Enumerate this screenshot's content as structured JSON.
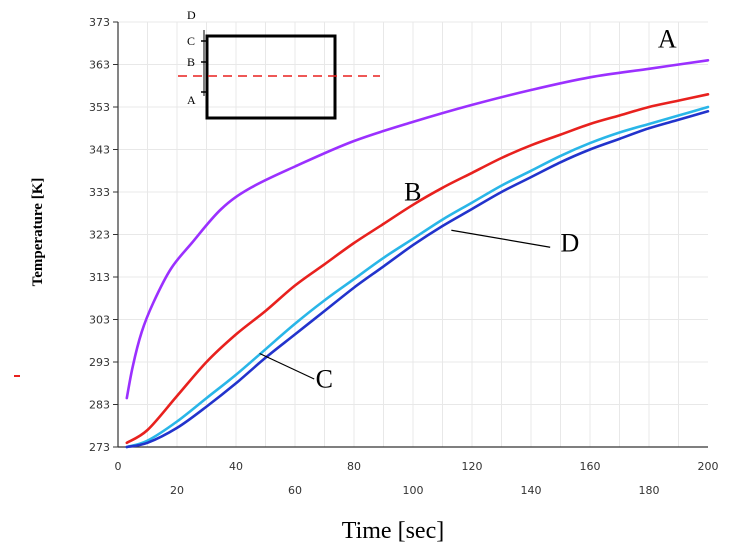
{
  "chart_data": {
    "type": "line",
    "xlabel": "Time [sec]",
    "ylabel": "Temperature [K]",
    "xlim": [
      0,
      200
    ],
    "ylim": [
      273,
      373
    ],
    "x_ticks_lower": [
      0,
      40,
      80,
      120,
      160,
      200
    ],
    "x_ticks_upper": [
      20,
      60,
      100,
      140,
      180
    ],
    "y_ticks": [
      273,
      283,
      293,
      303,
      313,
      323,
      333,
      343,
      353,
      363,
      373
    ],
    "grid": true,
    "series": [
      {
        "name": "A",
        "color": "#9b30ff",
        "x": [
          3,
          5,
          8,
          12,
          18,
          25,
          35,
          45,
          60,
          80,
          100,
          120,
          140,
          160,
          180,
          200
        ],
        "y": [
          284.5,
          292,
          300,
          307,
          315,
          321,
          329,
          334,
          339,
          345,
          349.5,
          353.5,
          357,
          360,
          362,
          364
        ]
      },
      {
        "name": "B",
        "color": "#e8211e",
        "x": [
          3,
          10,
          20,
          30,
          40,
          50,
          60,
          70,
          80,
          90,
          100,
          110,
          120,
          130,
          140,
          150,
          160,
          170,
          180,
          190,
          200
        ],
        "y": [
          274,
          277,
          285,
          293,
          299.5,
          305,
          311,
          316,
          321,
          325.5,
          330,
          334,
          337.5,
          341,
          344,
          346.5,
          349,
          351,
          353,
          354.5,
          356
        ]
      },
      {
        "name": "C",
        "color": "#29b6e8",
        "x": [
          3,
          10,
          20,
          30,
          40,
          50,
          60,
          70,
          80,
          90,
          100,
          110,
          120,
          130,
          140,
          150,
          160,
          170,
          180,
          190,
          200
        ],
        "y": [
          273,
          274.5,
          279,
          284.5,
          290,
          296,
          302,
          307.5,
          312.5,
          317.5,
          322,
          326.5,
          330.5,
          334.5,
          338,
          341.5,
          344.5,
          347,
          349,
          351,
          353
        ]
      },
      {
        "name": "D",
        "color": "#2233cc",
        "x": [
          3,
          10,
          20,
          30,
          40,
          50,
          60,
          70,
          80,
          90,
          100,
          110,
          120,
          130,
          140,
          150,
          160,
          170,
          180,
          190,
          200
        ],
        "y": [
          273,
          274,
          277.5,
          282.5,
          288,
          294,
          299.5,
          305,
          310.5,
          315.5,
          320.5,
          325,
          329,
          333,
          336.5,
          340,
          343,
          345.5,
          348,
          350,
          352
        ]
      }
    ],
    "curve_labels": [
      {
        "text": "A",
        "x": 183,
        "y": 367
      },
      {
        "text": "B",
        "x": 97,
        "y": 331
      },
      {
        "text": "C",
        "x": 67,
        "y": 287
      },
      {
        "text": "D",
        "x": 150,
        "y": 319
      }
    ],
    "inset": {
      "labels": [
        "D",
        "C",
        "B",
        "A"
      ],
      "line_color": "#e8211e"
    },
    "stray_mark_color": "#e8211e"
  }
}
